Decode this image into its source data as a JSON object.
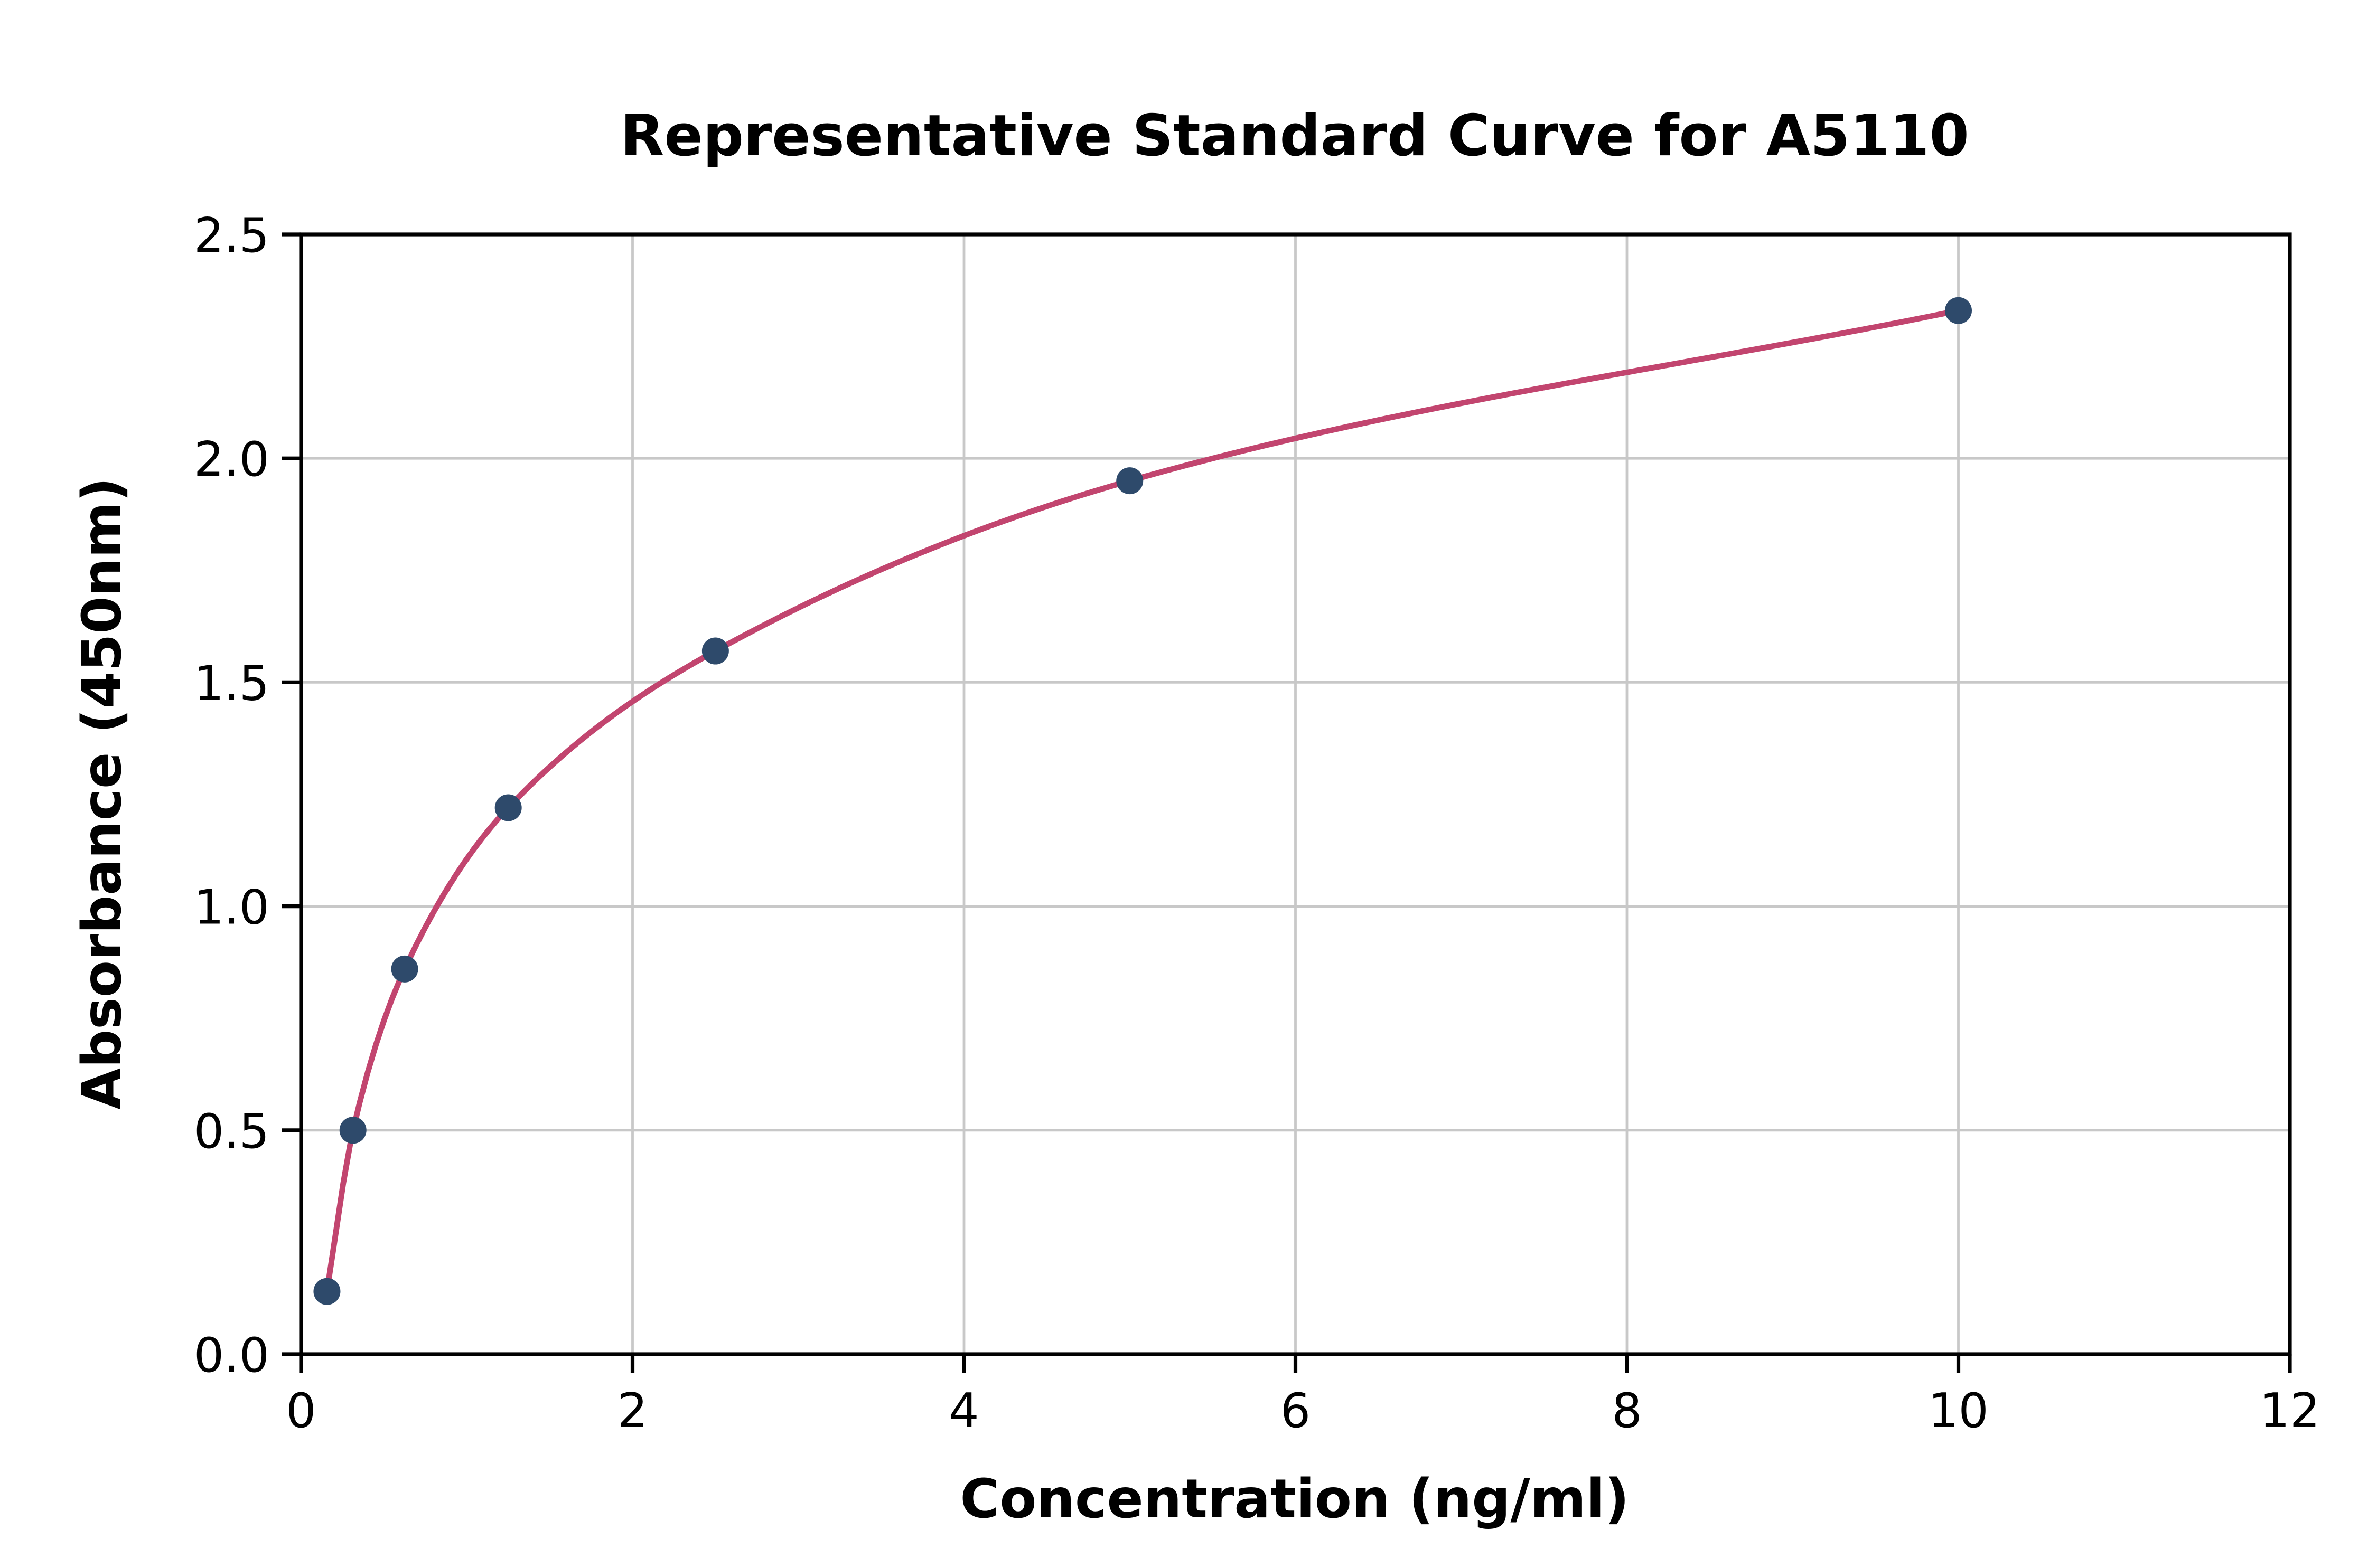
{
  "title": "Representative Standard Curve for A5110",
  "colors": {
    "curve": "#c2456f",
    "marker": "#2e4a6b",
    "grid": "#c8c8c8",
    "axis": "#000000",
    "background": "#ffffff"
  },
  "chart_data": {
    "type": "scatter",
    "title": "Representative Standard Curve for A5110",
    "xlabel": "Concentration (ng/ml)",
    "ylabel": "Absorbance (450nm)",
    "xlim": [
      0,
      12
    ],
    "ylim": [
      0,
      2.5
    ],
    "xticks": [
      "0",
      "2",
      "4",
      "6",
      "8",
      "10",
      "12"
    ],
    "xtick_values": [
      0,
      2,
      4,
      6,
      8,
      10,
      12
    ],
    "yticks": [
      "0.0",
      "0.5",
      "1.0",
      "1.5",
      "2.0",
      "2.5"
    ],
    "ytick_values": [
      0,
      0.5,
      1.0,
      1.5,
      2.0,
      2.5
    ],
    "grid": true,
    "legend": "none",
    "series": [
      {
        "name": "standard-curve",
        "x": [
          0.156,
          0.313,
          0.625,
          1.25,
          2.5,
          5,
          10
        ],
        "y": [
          0.14,
          0.5,
          0.86,
          1.22,
          1.57,
          1.95,
          2.33
        ],
        "line_color": "#c2456f",
        "marker_color": "#2e4a6b",
        "marker": "circle"
      }
    ]
  }
}
